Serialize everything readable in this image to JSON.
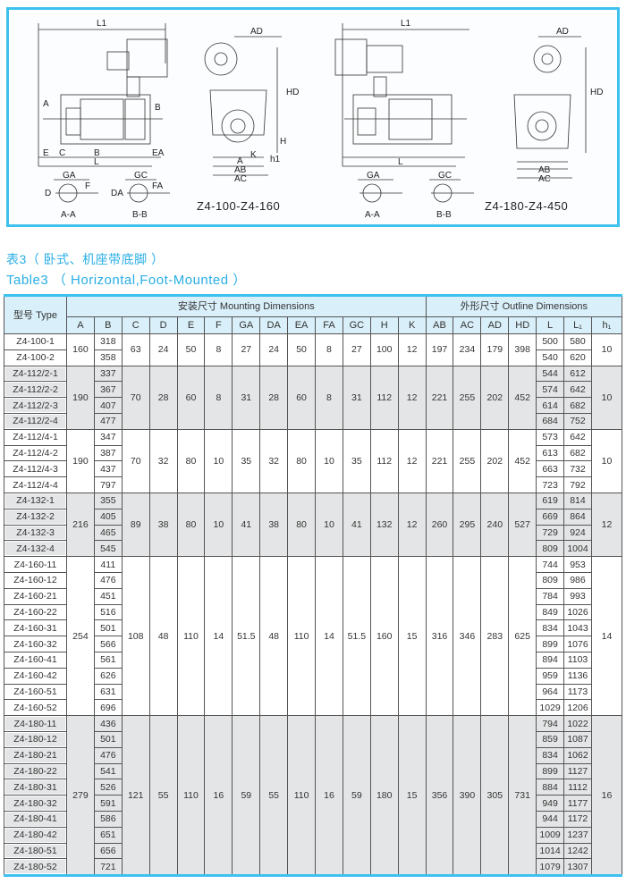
{
  "diagram": {
    "left_caption": "Z4-100-Z4-160",
    "right_caption": "Z4-180-Z4-450",
    "labels": {
      "L1": "L1",
      "AD": "AD",
      "HD": "HD",
      "A": "A",
      "B": "B",
      "C": "C",
      "E": "E",
      "EA": "EA",
      "L": "L",
      "AB": "AB",
      "AC": "AC",
      "K": "K",
      "H": "H",
      "h1": "h1",
      "GA": "GA",
      "GC": "GC",
      "D": "D",
      "DA": "DA",
      "F": "F",
      "FA": "FA",
      "AA": "A-A",
      "BB": "B-B"
    }
  },
  "title_cn": "表3（ 卧式、机座带底脚 ）",
  "title_en": "Table3 （ Horizontal,Foot-Mounted ）",
  "table": {
    "type_header": "型号 Type",
    "mounting_header": "安装尺寸  Mounting Dimensions",
    "outline_header": "外形尺寸  Outline Dimensions",
    "columns": [
      "A",
      "B",
      "C",
      "D",
      "E",
      "F",
      "GA",
      "DA",
      "EA",
      "FA",
      "GC",
      "H",
      "K",
      "AB",
      "AC",
      "AD",
      "HD",
      "L",
      "L₁",
      "h₁"
    ],
    "groups": [
      {
        "shaded": false,
        "models": [
          "Z4-100-1",
          "Z4-100-2"
        ],
        "B": [
          "318",
          "358"
        ],
        "L": [
          "500",
          "540"
        ],
        "L1": [
          "580",
          "620"
        ],
        "shared": {
          "A": "160",
          "C": "63",
          "D": "24",
          "E": "50",
          "F": "8",
          "GA": "27",
          "DA": "24",
          "EA": "50",
          "FA": "8",
          "GC": "27",
          "H": "100",
          "K": "12",
          "AB": "197",
          "AC": "234",
          "AD": "179",
          "HD": "398",
          "h1": "10"
        }
      },
      {
        "shaded": true,
        "models": [
          "Z4-112/2-1",
          "Z4-112/2-2",
          "Z4-112/2-3",
          "Z4-112/2-4"
        ],
        "B": [
          "337",
          "367",
          "407",
          "477"
        ],
        "L": [
          "544",
          "574",
          "614",
          "684"
        ],
        "L1": [
          "612",
          "642",
          "682",
          "752"
        ],
        "shared": {
          "A": "190",
          "C": "70",
          "D": "28",
          "E": "60",
          "F": "8",
          "GA": "31",
          "DA": "28",
          "EA": "60",
          "FA": "8",
          "GC": "31",
          "H": "112",
          "K": "12",
          "AB": "221",
          "AC": "255",
          "AD": "202",
          "HD": "452",
          "h1": "10"
        }
      },
      {
        "shaded": false,
        "models": [
          "Z4-112/4-1",
          "Z4-112/4-2",
          "Z4-112/4-3",
          "Z4-112/4-4"
        ],
        "B": [
          "347",
          "387",
          "437",
          "797"
        ],
        "L": [
          "573",
          "613",
          "663",
          "723"
        ],
        "L1": [
          "642",
          "682",
          "732",
          "792"
        ],
        "shared": {
          "A": "190",
          "C": "70",
          "D": "32",
          "E": "80",
          "F": "10",
          "GA": "35",
          "DA": "32",
          "EA": "80",
          "FA": "10",
          "GC": "35",
          "H": "112",
          "K": "12",
          "AB": "221",
          "AC": "255",
          "AD": "202",
          "HD": "452",
          "h1": "10"
        }
      },
      {
        "shaded": true,
        "models": [
          "Z4-132-1",
          "Z4-132-2",
          "Z4-132-3",
          "Z4-132-4"
        ],
        "B": [
          "355",
          "405",
          "465",
          "545"
        ],
        "L": [
          "619",
          "669",
          "729",
          "809"
        ],
        "L1": [
          "814",
          "864",
          "924",
          "1004"
        ],
        "shared": {
          "A": "216",
          "C": "89",
          "D": "38",
          "E": "80",
          "F": "10",
          "GA": "41",
          "DA": "38",
          "EA": "80",
          "FA": "10",
          "GC": "41",
          "H": "132",
          "K": "12",
          "AB": "260",
          "AC": "295",
          "AD": "240",
          "HD": "527",
          "h1": "12"
        }
      },
      {
        "shaded": false,
        "models": [
          "Z4-160-11",
          "Z4-160-12",
          "Z4-160-21",
          "Z4-160-22",
          "Z4-160-31",
          "Z4-160-32",
          "Z4-160-41",
          "Z4-160-42",
          "Z4-160-51",
          "Z4-160-52"
        ],
        "B": [
          "411",
          "476",
          "451",
          "516",
          "501",
          "566",
          "561",
          "626",
          "631",
          "696"
        ],
        "L": [
          "744",
          "809",
          "784",
          "849",
          "834",
          "899",
          "894",
          "959",
          "964",
          "1029"
        ],
        "L1": [
          "953",
          "986",
          "993",
          "1026",
          "1043",
          "1076",
          "1103",
          "1136",
          "1173",
          "1206"
        ],
        "shared": {
          "A": "254",
          "C": "108",
          "D": "48",
          "E": "110",
          "F": "14",
          "GA": "51.5",
          "DA": "48",
          "EA": "110",
          "FA": "14",
          "GC": "51.5",
          "H": "160",
          "K": "15",
          "AB": "316",
          "AC": "346",
          "AD": "283",
          "HD": "625",
          "h1": "14"
        }
      },
      {
        "shaded": true,
        "models": [
          "Z4-180-11",
          "Z4-180-12",
          "Z4-180-21",
          "Z4-180-22",
          "Z4-180-31",
          "Z4-180-32",
          "Z4-180-41",
          "Z4-180-42",
          "Z4-180-51",
          "Z4-180-52"
        ],
        "B": [
          "436",
          "501",
          "476",
          "541",
          "526",
          "591",
          "586",
          "651",
          "656",
          "721"
        ],
        "L": [
          "794",
          "859",
          "834",
          "899",
          "884",
          "949",
          "944",
          "1009",
          "1014",
          "1079"
        ],
        "L1": [
          "1022",
          "1087",
          "1062",
          "1127",
          "1112",
          "1177",
          "1172",
          "1237",
          "1242",
          "1307"
        ],
        "shared": {
          "A": "279",
          "C": "121",
          "D": "55",
          "E": "110",
          "F": "16",
          "GA": "59",
          "DA": "55",
          "EA": "110",
          "FA": "16",
          "GC": "59",
          "H": "180",
          "K": "15",
          "AB": "356",
          "AC": "390",
          "AD": "305",
          "HD": "731",
          "h1": "16"
        }
      }
    ]
  },
  "colors": {
    "accent": "#3ec1ee",
    "header_bg": "#d9eff9",
    "shaded_row": "#e4e5e6"
  }
}
